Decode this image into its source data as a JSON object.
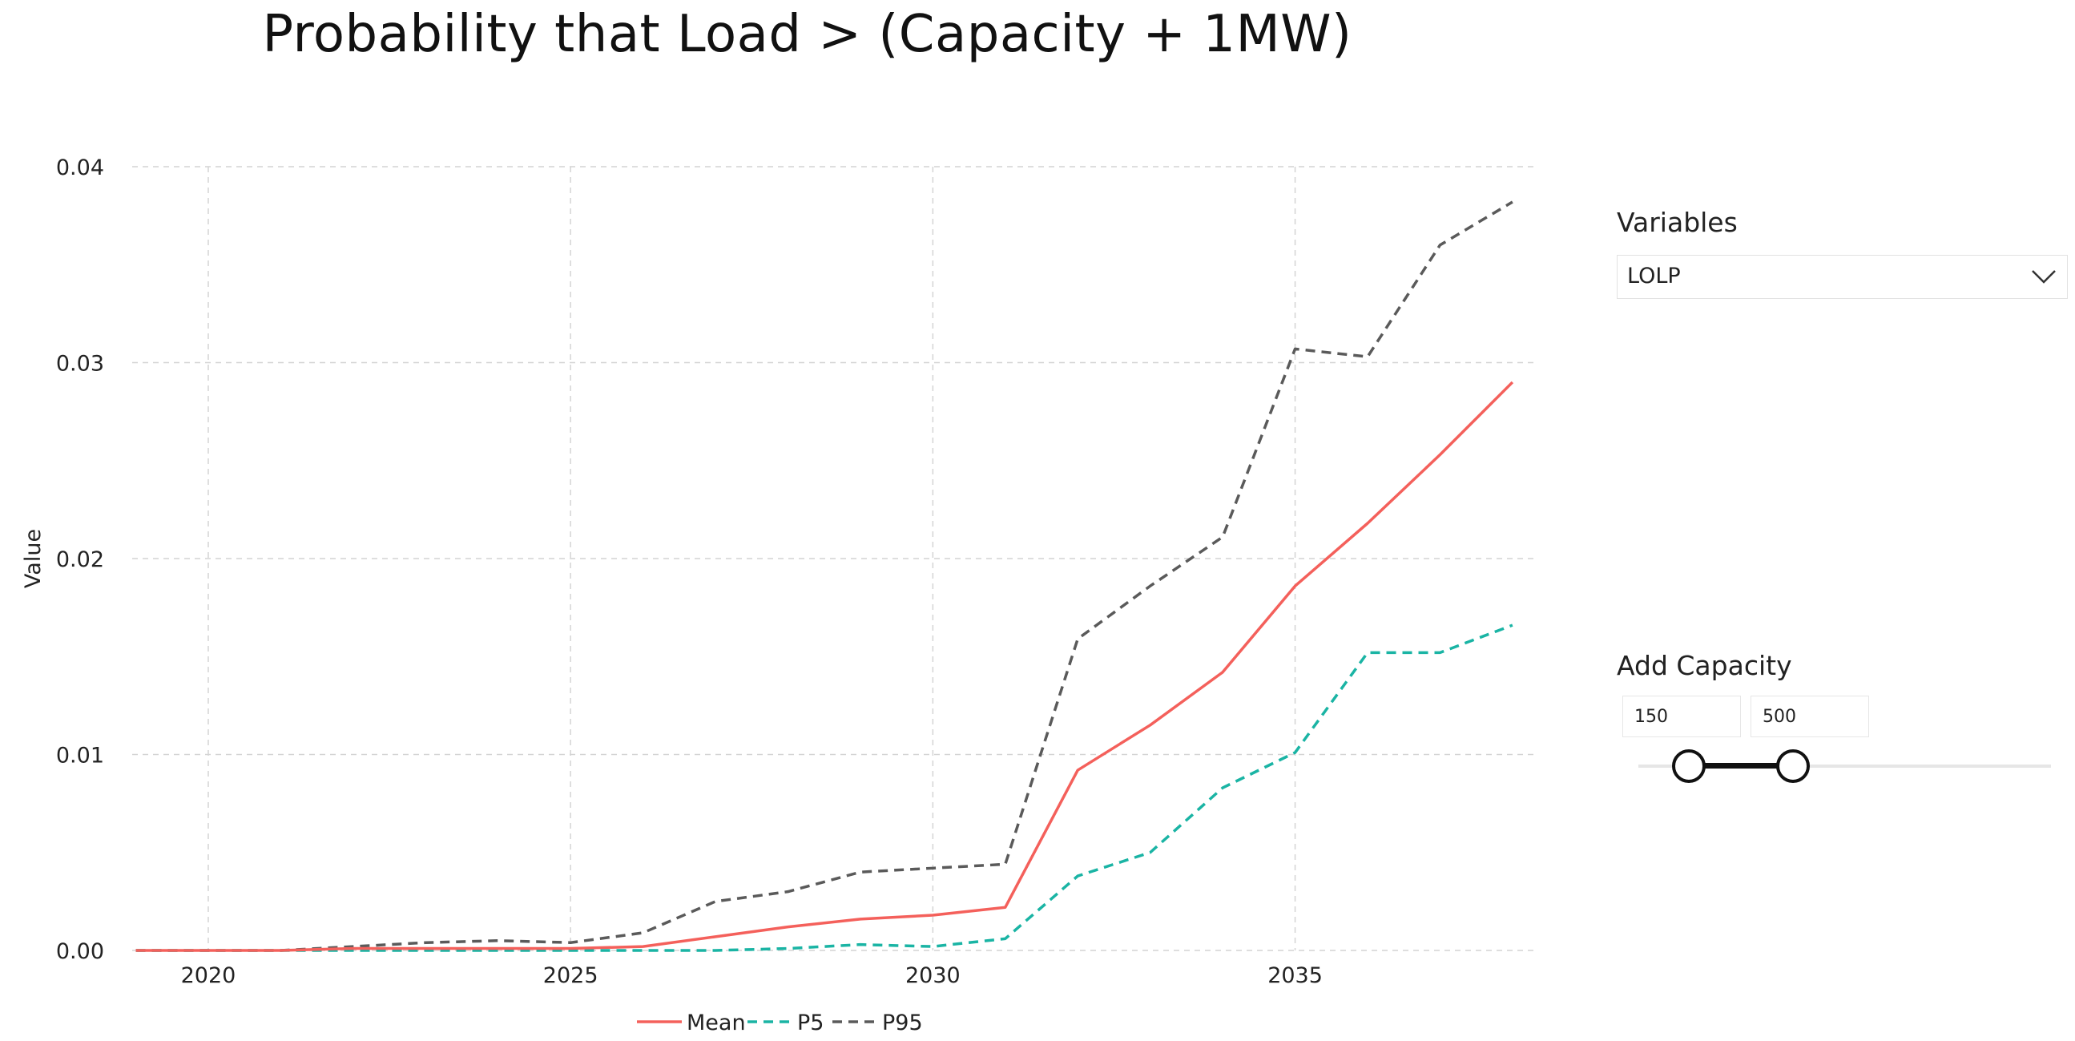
{
  "title": "Probability that Load > (Capacity  + 1MW)",
  "colors": {
    "mean": "#f4605b",
    "p5": "#1ab4a4",
    "p95": "#5a5a5a",
    "grid": "#d4d4d4"
  },
  "variables": {
    "label": "Variables",
    "selected": "LOLP",
    "icon": "chevron-down-icon"
  },
  "add_capacity": {
    "label": "Add Capacity",
    "min_value": "150",
    "max_value": "500"
  },
  "chart_data": {
    "type": "line",
    "title": "Probability that Load > (Capacity  + 1MW)",
    "xlabel": "",
    "ylabel": "Value",
    "xlim": [
      2018.95,
      2038.3
    ],
    "ylim": [
      0,
      0.04
    ],
    "x_ticks": [
      2020,
      2025,
      2030,
      2035
    ],
    "x_tick_labels": [
      "2020",
      "2025",
      "2030",
      "2035"
    ],
    "y_ticks": [
      0,
      0.01,
      0.02,
      0.03,
      0.04
    ],
    "y_tick_labels": [
      "0.00",
      "0.01",
      "0.02",
      "0.03",
      "0.04"
    ],
    "grid": true,
    "legend_position": "bottom-center",
    "x": [
      2019,
      2020,
      2021,
      2022,
      2023,
      2024,
      2025,
      2026,
      2027,
      2028,
      2029,
      2030,
      2031,
      2032,
      2033,
      2034,
      2035,
      2036,
      2037,
      2038
    ],
    "series": [
      {
        "name": "Mean",
        "style": "solid",
        "values": [
          0.0,
          0.0,
          0.0,
          0.0001,
          0.0001,
          0.0001,
          0.0001,
          0.0002,
          0.0007,
          0.0012,
          0.0016,
          0.0018,
          0.0022,
          0.0092,
          0.0115,
          0.0142,
          0.0186,
          0.0218,
          0.0253,
          0.029
        ]
      },
      {
        "name": "P5",
        "style": "dashed",
        "values": [
          0.0,
          0.0,
          0.0,
          0.0,
          0.0,
          0.0,
          0.0,
          0.0,
          0.0,
          0.0001,
          0.0003,
          0.0002,
          0.0006,
          0.0038,
          0.005,
          0.0083,
          0.0101,
          0.0152,
          0.0152,
          0.0166
        ]
      },
      {
        "name": "P95",
        "style": "dashed",
        "values": [
          0.0,
          0.0,
          0.0,
          0.0002,
          0.0004,
          0.0005,
          0.0004,
          0.0009,
          0.0025,
          0.003,
          0.004,
          0.0042,
          0.0044,
          0.0159,
          0.0186,
          0.0211,
          0.0307,
          0.0303,
          0.036,
          0.0382
        ]
      }
    ]
  }
}
